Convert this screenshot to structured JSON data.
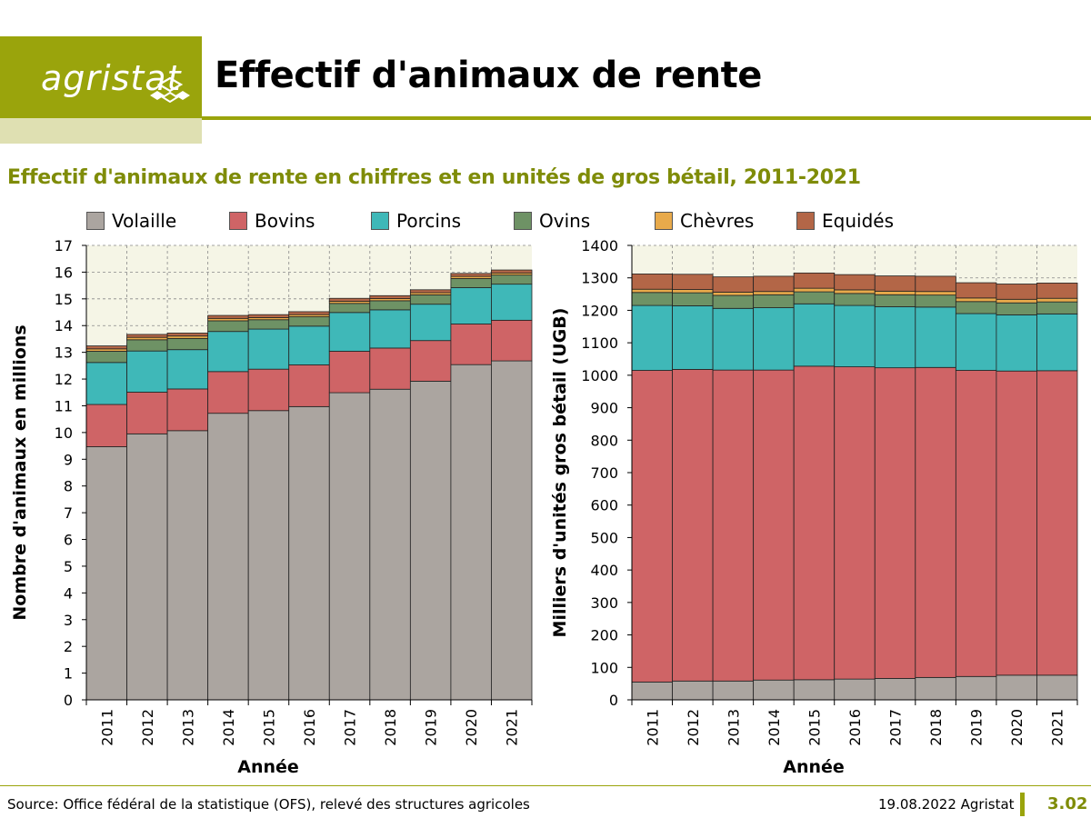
{
  "header": {
    "logo_text": "agristat",
    "title": "Effectif d'animaux de rente"
  },
  "subtitle": "Effectif d'animaux de rente en chiffres et en unités de gros bétail, 2011-2021",
  "colors": {
    "brand": "#9aa40c",
    "brand_light": "#dfe0b2",
    "plot_bg": "#f5f5e6"
  },
  "legend": [
    {
      "name": "Volaille",
      "color": "#aba5a0"
    },
    {
      "name": "Bovins",
      "color": "#cf6466"
    },
    {
      "name": "Porcins",
      "color": "#3fb8b8"
    },
    {
      "name": "Ovins",
      "color": "#6e9265"
    },
    {
      "name": "Chèvres",
      "color": "#e8aa4b"
    },
    {
      "name": "Equidés",
      "color": "#b36647"
    }
  ],
  "chart_data": [
    {
      "type": "bar",
      "stacked": true,
      "categories": [
        "2011",
        "2012",
        "2013",
        "2014",
        "2015",
        "2016",
        "2017",
        "2018",
        "2019",
        "2020",
        "2021"
      ],
      "xlabel": "Année",
      "ylabel": "Nombre d'animaux en millions",
      "ylim": [
        0,
        17
      ],
      "yticks": [
        0,
        1,
        2,
        3,
        4,
        5,
        6,
        7,
        8,
        9,
        10,
        11,
        12,
        13,
        14,
        15,
        16,
        17
      ],
      "grid": true,
      "series": [
        {
          "name": "Volaille",
          "values": [
            9.47,
            9.95,
            10.07,
            10.72,
            10.82,
            10.97,
            11.49,
            11.62,
            11.92,
            12.54,
            12.68
          ]
        },
        {
          "name": "Bovins",
          "values": [
            1.58,
            1.56,
            1.56,
            1.56,
            1.55,
            1.56,
            1.55,
            1.54,
            1.52,
            1.52,
            1.52
          ]
        },
        {
          "name": "Porcins",
          "values": [
            1.57,
            1.54,
            1.47,
            1.5,
            1.5,
            1.45,
            1.45,
            1.43,
            1.36,
            1.36,
            1.35
          ]
        },
        {
          "name": "Ovins",
          "values": [
            0.42,
            0.42,
            0.42,
            0.4,
            0.35,
            0.35,
            0.34,
            0.34,
            0.35,
            0.34,
            0.34
          ]
        },
        {
          "name": "Chèvres",
          "values": [
            0.09,
            0.09,
            0.09,
            0.09,
            0.08,
            0.08,
            0.08,
            0.08,
            0.08,
            0.08,
            0.08
          ]
        },
        {
          "name": "Equidés",
          "values": [
            0.11,
            0.11,
            0.11,
            0.11,
            0.11,
            0.11,
            0.11,
            0.11,
            0.11,
            0.11,
            0.11
          ]
        }
      ]
    },
    {
      "type": "bar",
      "stacked": true,
      "categories": [
        "2011",
        "2012",
        "2013",
        "2014",
        "2015",
        "2016",
        "2017",
        "2018",
        "2019",
        "2020",
        "2021"
      ],
      "xlabel": "Année",
      "ylabel": "Milliers d'unités gros bétail (UGB)",
      "ylim": [
        0,
        1400
      ],
      "yticks": [
        0,
        100,
        200,
        300,
        400,
        500,
        600,
        700,
        800,
        900,
        1000,
        1100,
        1200,
        1300,
        1400
      ],
      "grid": true,
      "series": [
        {
          "name": "Volaille",
          "values": [
            55,
            58,
            58,
            61,
            62,
            64,
            66,
            69,
            72,
            76,
            76
          ]
        },
        {
          "name": "Bovins",
          "values": [
            960,
            960,
            958,
            955,
            966,
            962,
            957,
            955,
            943,
            937,
            938
          ]
        },
        {
          "name": "Porcins",
          "values": [
            200,
            196,
            190,
            192,
            192,
            189,
            188,
            186,
            175,
            173,
            175
          ]
        },
        {
          "name": "Ovins",
          "values": [
            40,
            40,
            40,
            40,
            37,
            37,
            37,
            37,
            37,
            37,
            37
          ]
        },
        {
          "name": "Chèvres",
          "values": [
            10,
            10,
            10,
            10,
            11,
            11,
            11,
            11,
            11,
            11,
            11
          ]
        },
        {
          "name": "Equidés",
          "values": [
            47,
            47,
            47,
            47,
            47,
            47,
            47,
            47,
            47,
            47,
            47
          ]
        }
      ]
    }
  ],
  "footer": {
    "source": "Source: Office fédéral de la statistique (OFS), relevé des structures agricoles",
    "date": "19.08.2022 Agristat",
    "page": "3.02"
  }
}
